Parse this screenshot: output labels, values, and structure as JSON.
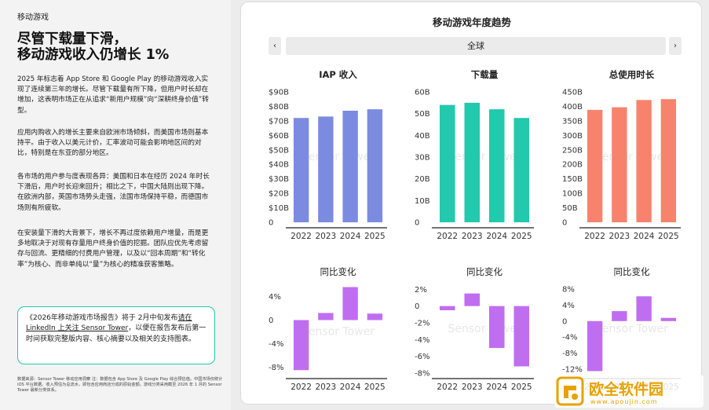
{
  "left_panel": {
    "kicker": "移动游戏",
    "headline_line1": "尽管下载量下滑，",
    "headline_line2": "移动游戏收入仍增长 1%",
    "paragraphs": [
      "2025 年标志着 App Store 和 Google Play 的移动游戏收入实现了连续第三年的增长。尽管下载量有所下降，但用户时长却在增加，这表明市场正在从追求“新用户规模”向“深耕终身价值”转型。",
      "应用内购收入的增长主要来自欧洲市场倾斜，而美国市场则基本持平。由于收入以美元计价，汇率波动可能会影响地区间的对比，特别是在东亚的部分地区。",
      "各市场的用户参与度表现各异：美国和日本在经历 2024 年时长下滑后，用户时长迎来回升；相比之下，中国大陆则出现下降。在欧洲内部，英国市场势头走强，法国市场保持平稳，而德国市场则有所疲软。",
      "在安装量下滑的大背景下，增长不再过度依赖用户增量，而是更多地取决于对现有存量用户终身价值的挖掘。团队应优先考虑留存与回流、更精细的付费用户管理，以及以“回本周期”和“转化率”为核心、而非单纯以“量”为核心的精准获客策略。"
    ],
    "cta_part1": "《2026年移动游戏市场报告》将于 2月中旬发布",
    "cta_link": "请在 LinkedIn 上关注 Sensor Tower",
    "cta_part2": "，以便在报告发布后第一时间获取完整版内容、核心摘要以及相关的支持图表。",
    "footnote": "数据来源：Sensor Tower 移动应用洞察 注：数据包含 App Store 及 Google Play 综合预估值。中国市场仅统计 iOS 平台数据。收入预估为总流水，即包含应用商店分成的原始金额。游戏分类采用截至 2026 年 1 月的 Sensor Tower 最新分类体系。"
  },
  "dashboard": {
    "title": "移动游戏年度趋势",
    "region": "全球",
    "prev_symbol": "‹",
    "next_symbol": "›",
    "watermark": "Sensor Tower"
  },
  "brand": {
    "name": "欧全软件园",
    "url": "www.apoujin.com"
  },
  "colors": {
    "iap": "#7a8be0",
    "downloads": "#22c9ad",
    "time": "#f8836c",
    "yoy": "#c06ef0",
    "accent": "#21c9a6"
  },
  "chart_data": [
    {
      "type": "bar",
      "title": "IAP 收入",
      "categories": [
        "2022",
        "2023",
        "2024",
        "2025"
      ],
      "values": [
        72,
        73,
        77,
        78
      ],
      "ylim": [
        0,
        90
      ],
      "yticks": [
        0,
        10,
        20,
        30,
        40,
        50,
        60,
        70,
        80,
        90
      ],
      "ytick_labels": [
        "0",
        "$10B",
        "$20B",
        "$30B",
        "$40B",
        "$50B",
        "$60B",
        "$70B",
        "$80B",
        "$90B"
      ],
      "unit": "B USD"
    },
    {
      "type": "bar",
      "title": "下载量",
      "categories": [
        "2022",
        "2023",
        "2024",
        "2025"
      ],
      "values": [
        54,
        55,
        52,
        48
      ],
      "ylim": [
        0,
        60
      ],
      "yticks": [
        0,
        10,
        20,
        30,
        40,
        50,
        60
      ],
      "ytick_labels": [
        "0",
        "10B",
        "20B",
        "30B",
        "40B",
        "50B",
        "60B"
      ],
      "unit": "B"
    },
    {
      "type": "bar",
      "title": "总使用时长",
      "categories": [
        "2022",
        "2023",
        "2024",
        "2025"
      ],
      "values": [
        388,
        397,
        422,
        425
      ],
      "ylim": [
        0,
        450
      ],
      "yticks": [
        0,
        50,
        100,
        150,
        200,
        250,
        300,
        350,
        400,
        450
      ],
      "ytick_labels": [
        "0",
        "50B",
        "100B",
        "150B",
        "200B",
        "250B",
        "300B",
        "350B",
        "400B",
        "450B"
      ],
      "unit": "B hours"
    },
    {
      "type": "bar",
      "title": "同比变化",
      "categories": [
        "2022",
        "2023",
        "2024",
        "2025"
      ],
      "values": [
        -8.5,
        1.2,
        5.6,
        1.1
      ],
      "ylim": [
        -9,
        5
      ],
      "yticks": [
        -8,
        -4,
        0,
        4
      ],
      "ytick_labels": [
        "-8%",
        "-4%",
        "0",
        "4%"
      ],
      "unit": "%"
    },
    {
      "type": "bar",
      "title": "同比变化",
      "categories": [
        "2022",
        "2023",
        "2024",
        "2025"
      ],
      "values": [
        -0.5,
        1.5,
        -5.0,
        -7.2
      ],
      "ylim": [
        -8,
        2.5
      ],
      "yticks": [
        -8,
        -6,
        -4,
        -2,
        0,
        2
      ],
      "ytick_labels": [
        "-8%",
        "-6%",
        "-4%",
        "-2%",
        "0",
        "2%"
      ],
      "unit": "%"
    },
    {
      "type": "bar",
      "title": "同比变化",
      "categories": [
        "2022",
        "2023",
        "2024",
        "2025"
      ],
      "values": [
        -12.5,
        2.5,
        6.2,
        0.8
      ],
      "ylim": [
        -13,
        9
      ],
      "yticks": [
        -12,
        -8,
        -4,
        0,
        4,
        8
      ],
      "ytick_labels": [
        "-12%",
        "-8%",
        "-4%",
        "0",
        "4%",
        "8%"
      ],
      "unit": "%"
    }
  ]
}
